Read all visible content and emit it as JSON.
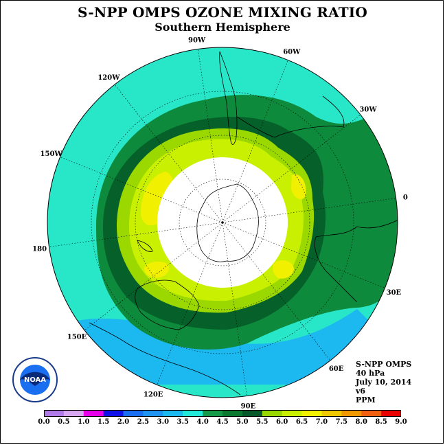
{
  "title": "S-NPP OMPS OZONE MIXING RATIO",
  "subtitle": "Southern Hemisphere",
  "longitude_labels": [
    {
      "text": "90W",
      "lon": -90
    },
    {
      "text": "60W",
      "lon": -60
    },
    {
      "text": "30W",
      "lon": -30
    },
    {
      "text": "0",
      "lon": 0
    },
    {
      "text": "30E",
      "lon": 30
    },
    {
      "text": "60E",
      "lon": 60
    },
    {
      "text": "90E",
      "lon": 90
    },
    {
      "text": "120E",
      "lon": 120
    },
    {
      "text": "150E",
      "lon": 150
    },
    {
      "text": "180",
      "lon": 180
    },
    {
      "text": "150W",
      "lon": -150
    },
    {
      "text": "120W",
      "lon": -120
    }
  ],
  "info": {
    "instrument": "S-NPP OMPS",
    "level": "40 hPa",
    "date": "July 10, 2014",
    "version": "v6",
    "units": "PPM"
  },
  "colorbar": {
    "labels": [
      "0.0",
      "0.5",
      "1.0",
      "1.5",
      "2.0",
      "2.5",
      "3.0",
      "3.5",
      "4.0",
      "4.5",
      "5.0",
      "5.5",
      "6.0",
      "6.5",
      "7.0",
      "7.5",
      "8.0",
      "8.5",
      "9.0"
    ],
    "colors": [
      "#b07be6",
      "#d7a8f0",
      "#e800e8",
      "#1010e8",
      "#1a6ff0",
      "#1c94f0",
      "#1cb8f0",
      "#22e8d8",
      "#159a4a",
      "#0a7a30",
      "#05582a",
      "#98d800",
      "#c8f000",
      "#f0f000",
      "#f0c800",
      "#f09800",
      "#f06010",
      "#e80000",
      "#8b5a3c"
    ]
  },
  "ozone_field_colors": {
    "outer": "#28e6c8",
    "band_4_4_5": "#0e8a3c",
    "band_4_5_5": "#05602a",
    "band_5_5_5": "#9ad800",
    "band_5_5_6": "#c8f000",
    "band_6_6_5": "#f0f000",
    "low_ozone": "#1cb8f0",
    "polar_gap": "#ffffff"
  },
  "logo": {
    "text": "NOAA"
  }
}
